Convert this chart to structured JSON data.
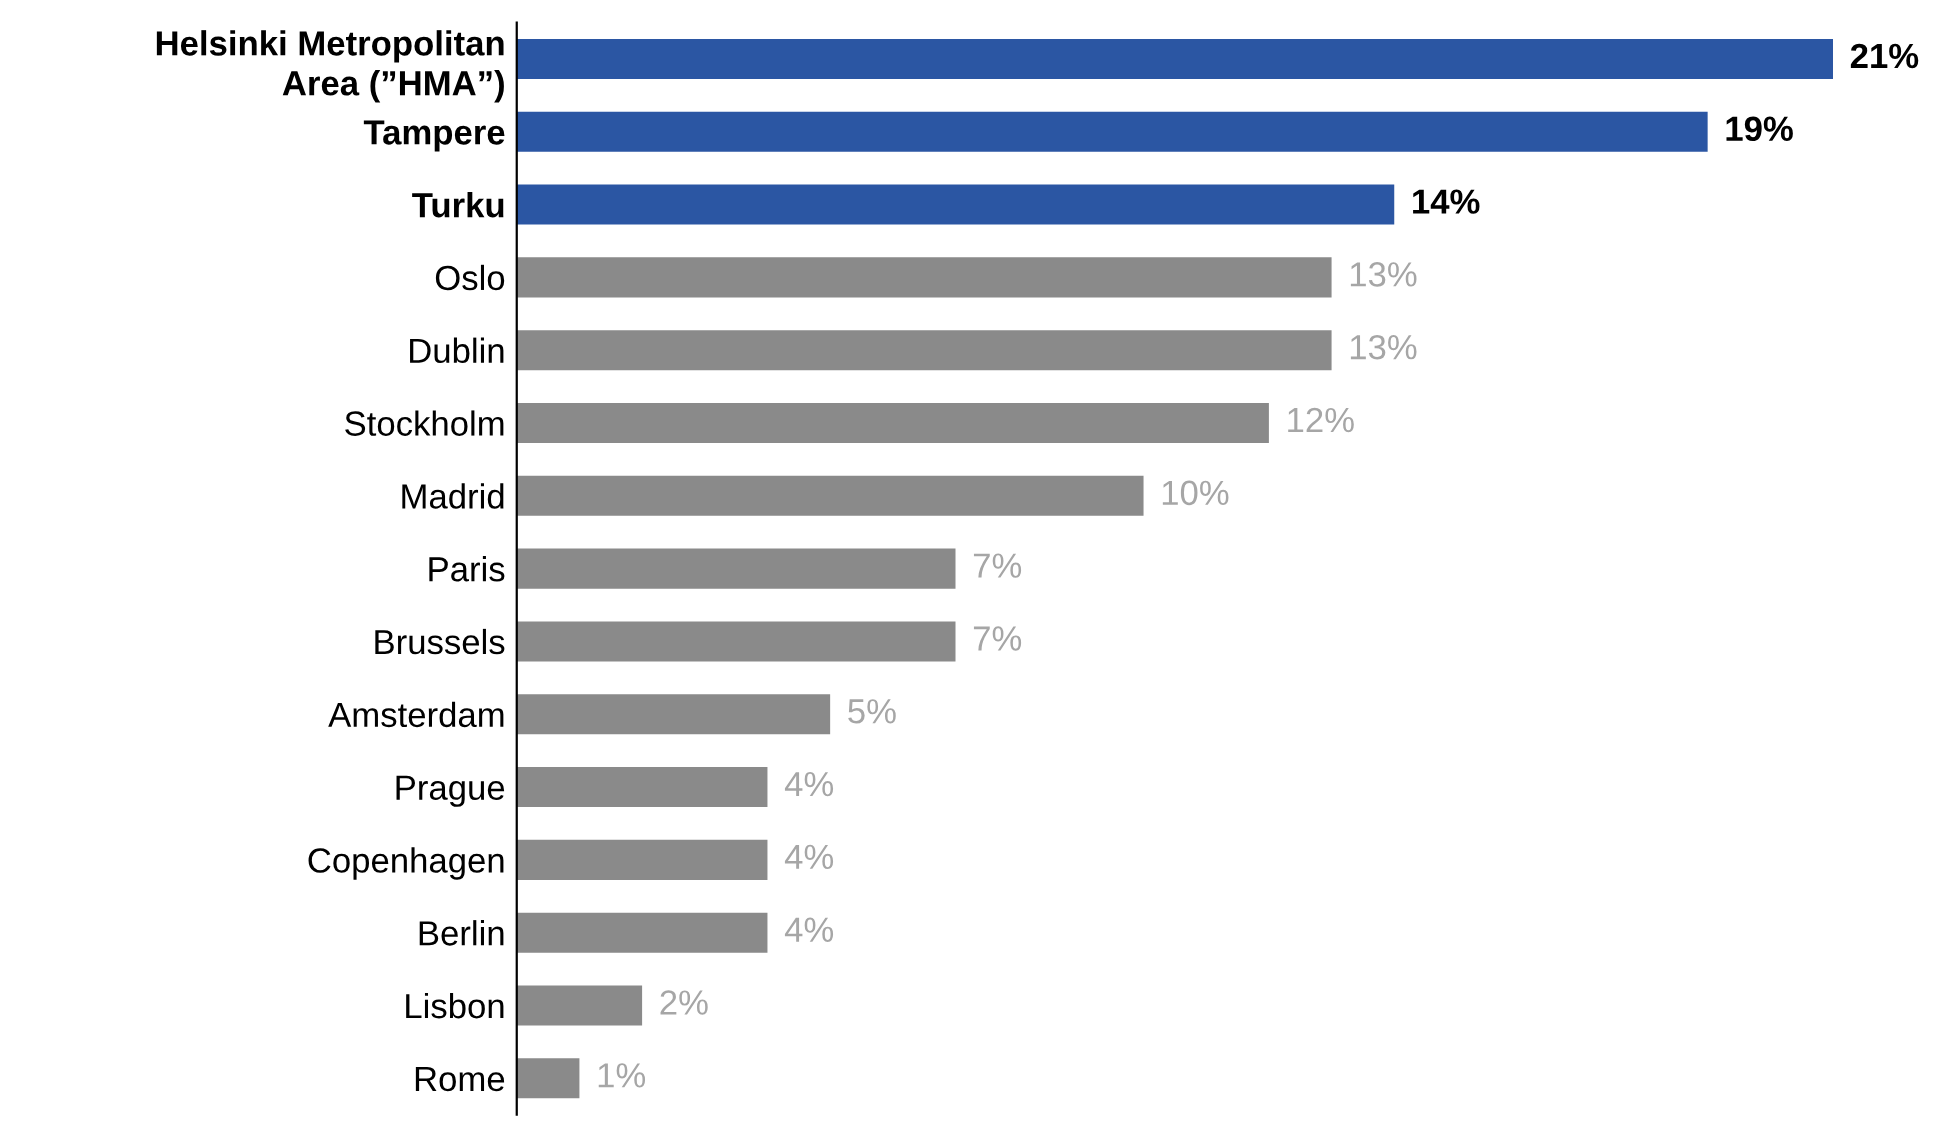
{
  "chart_data": {
    "type": "bar",
    "orientation": "horizontal",
    "categories": [
      "Helsinki Metropolitan\nArea (”HMA”)",
      "Tampere",
      "Turku",
      "Oslo",
      "Dublin",
      "Stockholm",
      "Madrid",
      "Paris",
      "Brussels",
      "Amsterdam",
      "Prague",
      "Copenhagen",
      "Berlin",
      "Lisbon",
      "Rome"
    ],
    "values": [
      21,
      19,
      14,
      13,
      13,
      12,
      10,
      7,
      7,
      5,
      4,
      4,
      4,
      2,
      1
    ],
    "value_labels": [
      "21%",
      "19%",
      "14%",
      "13%",
      "13%",
      "12%",
      "10%",
      "7%",
      "7%",
      "5%",
      "4%",
      "4%",
      "4%",
      "2%",
      "1%"
    ],
    "colors": [
      "#2b56a3",
      "#2b56a3",
      "#2b56a3",
      "#8a8a8a",
      "#8a8a8a",
      "#8a8a8a",
      "#8a8a8a",
      "#8a8a8a",
      "#8a8a8a",
      "#8a8a8a",
      "#8a8a8a",
      "#8a8a8a",
      "#8a8a8a",
      "#8a8a8a",
      "#8a8a8a"
    ],
    "grid": false,
    "legend": false
  }
}
